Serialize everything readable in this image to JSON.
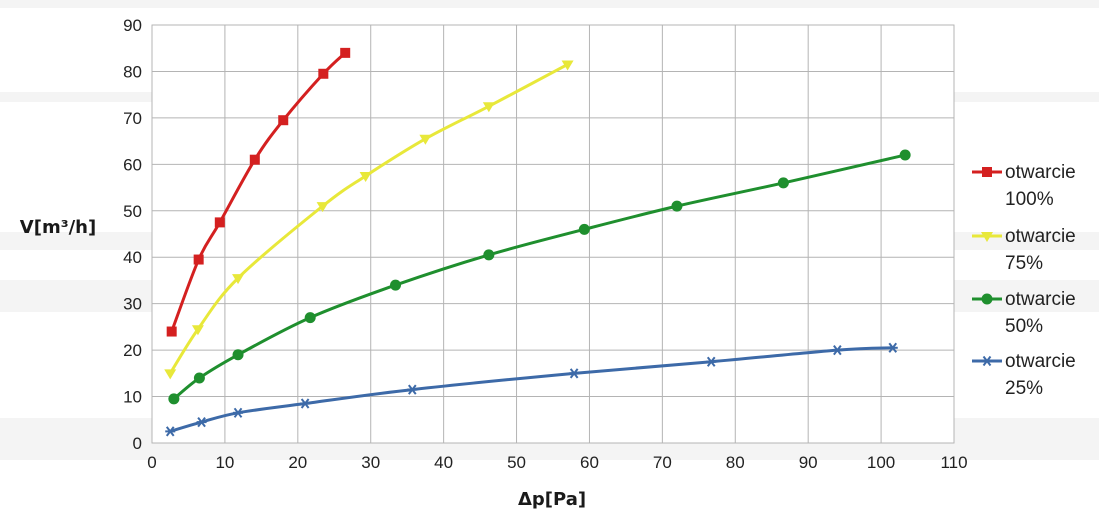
{
  "chart_data": {
    "type": "line",
    "title": "",
    "xlabel": "Δp[Pa]",
    "ylabel": "V[m³/h]",
    "xlim": [
      0,
      110
    ],
    "ylim": [
      0,
      90
    ],
    "xticks": [
      0,
      10,
      20,
      30,
      40,
      50,
      60,
      70,
      80,
      90,
      100,
      110
    ],
    "yticks": [
      0,
      10,
      20,
      30,
      40,
      50,
      60,
      70,
      80,
      90
    ],
    "grid": true,
    "legend_position": "right",
    "series": [
      {
        "name_line1": "otwarcie",
        "name_line2": "100%",
        "color": "#d42020",
        "marker": "square",
        "x": [
          2.7,
          6.4,
          9.3,
          14.1,
          18.0,
          23.5,
          26.5
        ],
        "y": [
          24.0,
          39.5,
          47.5,
          61.0,
          69.5,
          79.5,
          84.0
        ]
      },
      {
        "name_line1": "otwarcie",
        "name_line2": "75%",
        "color": "#e8e83a",
        "marker": "triangle-down",
        "x": [
          2.5,
          6.3,
          11.8,
          23.4,
          29.3,
          37.5,
          46.2,
          57.0
        ],
        "y": [
          15.0,
          24.5,
          35.5,
          51.0,
          57.5,
          65.5,
          72.5,
          81.5
        ]
      },
      {
        "name_line1": "otwarcie",
        "name_line2": "50%",
        "color": "#1f8f2e",
        "marker": "circle",
        "x": [
          3.0,
          6.5,
          11.8,
          21.7,
          33.4,
          46.2,
          59.3,
          72.0,
          86.6,
          103.3
        ],
        "y": [
          9.5,
          14.0,
          19.0,
          27.0,
          34.0,
          40.5,
          46.0,
          51.0,
          56.0,
          62.0
        ]
      },
      {
        "name_line1": "otwarcie",
        "name_line2": "25%",
        "color": "#3d6aa8",
        "marker": "star",
        "x": [
          2.5,
          6.8,
          11.8,
          21.0,
          35.7,
          57.9,
          76.7,
          94.0,
          101.6
        ],
        "y": [
          2.5,
          4.5,
          6.5,
          8.5,
          11.5,
          15.0,
          17.5,
          20.0,
          20.5
        ]
      }
    ]
  }
}
